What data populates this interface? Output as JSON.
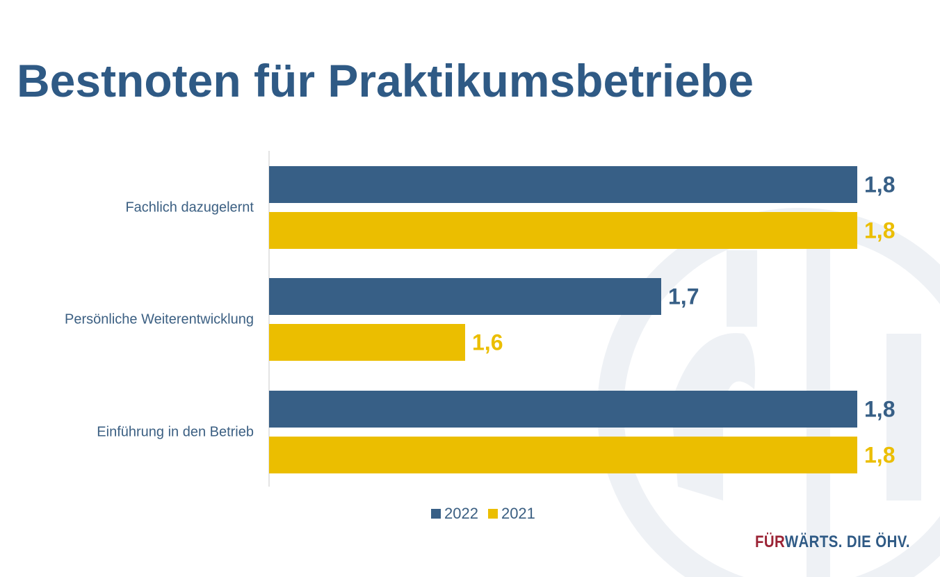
{
  "title": "Bestnoten für Praktikumsbetriebe",
  "brand": {
    "part1": "FÜR",
    "part2": "WÄRTS. DIE ÖHV.",
    "color1": "#9B2335",
    "color2": "#2F5A85"
  },
  "colors": {
    "title": "#2F5A85",
    "series_2022": "#375F86",
    "series_2021": "#EBBE00",
    "watermark": "#EEF1F5"
  },
  "chart_data": {
    "type": "bar",
    "orientation": "horizontal",
    "title": "",
    "categories": [
      "Fachlich dazugelernt",
      "Persönliche Weiterentwicklung",
      "Einführung in den Betrieb"
    ],
    "series": [
      {
        "name": "2022",
        "values": [
          1.8,
          1.7,
          1.8
        ],
        "labels": [
          "1,8",
          "1,7",
          "1,8"
        ],
        "color": "#375F86"
      },
      {
        "name": "2021",
        "values": [
          1.8,
          1.6,
          1.8
        ],
        "labels": [
          "1,8",
          "1,6",
          "1,8"
        ],
        "color": "#EBBE00"
      }
    ],
    "xlim": [
      1.5,
      1.8
    ],
    "grid": false,
    "legend": "bottom"
  }
}
